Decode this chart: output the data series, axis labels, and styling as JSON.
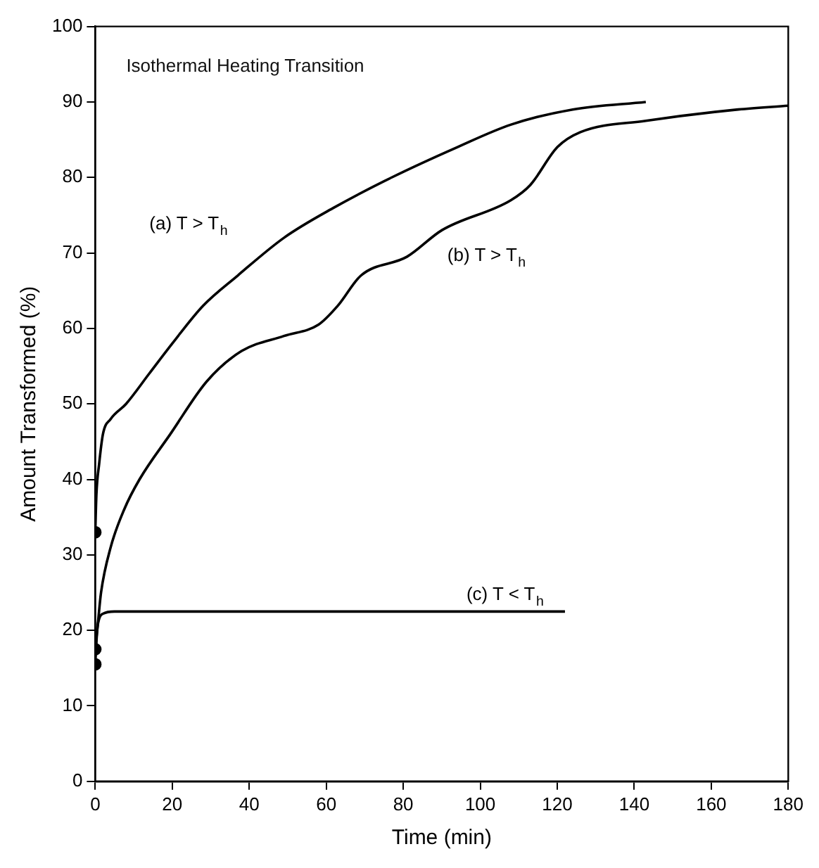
{
  "chart_data": {
    "type": "line",
    "title": "Isothermal Heating Transition",
    "xlabel": "Time (min)",
    "ylabel": "Amount Transformed (%)",
    "xlim": [
      0,
      180
    ],
    "xticks": [
      0,
      20,
      40,
      60,
      80,
      100,
      120,
      140,
      160,
      180
    ],
    "ylim": [
      0,
      100
    ],
    "yticks": [
      0,
      10,
      20,
      30,
      40,
      50,
      60,
      70,
      80,
      90,
      100
    ],
    "grid": false,
    "legend": false,
    "marker": "none",
    "line_style": "solid",
    "series": [
      {
        "name": "(a) T > T$_{h}$",
        "color": "#000000",
        "x": [
          0,
          0.3,
          1,
          2,
          4,
          8,
          14,
          20,
          28,
          37,
          49,
          62,
          77,
          94,
          108,
          124,
          143
        ],
        "values": [
          33,
          38,
          42,
          46,
          48,
          50,
          54,
          58,
          63,
          67,
          72,
          76,
          80,
          84,
          87,
          89,
          90
        ]
      },
      {
        "name": "(b) T > T$_{h}$",
        "color": "#000000",
        "x": [
          0,
          0.7,
          1.5,
          4,
          7.5,
          11.5,
          19.5,
          29,
          38,
          49,
          58,
          63,
          69,
          81,
          90,
          108,
          113,
          120,
          126,
          143,
          167,
          180
        ],
        "values": [
          17.5,
          21,
          25,
          31,
          36,
          40,
          46,
          53,
          57,
          59,
          60.5,
          63,
          67,
          69.5,
          73,
          77,
          79,
          84,
          86,
          87.5,
          89,
          89.5
        ]
      },
      {
        "name": "(c) T < T$_{h}$",
        "color": "#000000",
        "x": [
          0,
          0.5,
          1,
          2,
          5,
          122
        ],
        "values": [
          15.5,
          20,
          21.5,
          22.2,
          22.5,
          22.5
        ]
      },
      {
        "type": "scatter",
        "marker": "circle",
        "color": "#000000",
        "x": [
          0,
          0,
          0
        ],
        "values": [
          33,
          17.5,
          15.5
        ]
      }
    ]
  }
}
